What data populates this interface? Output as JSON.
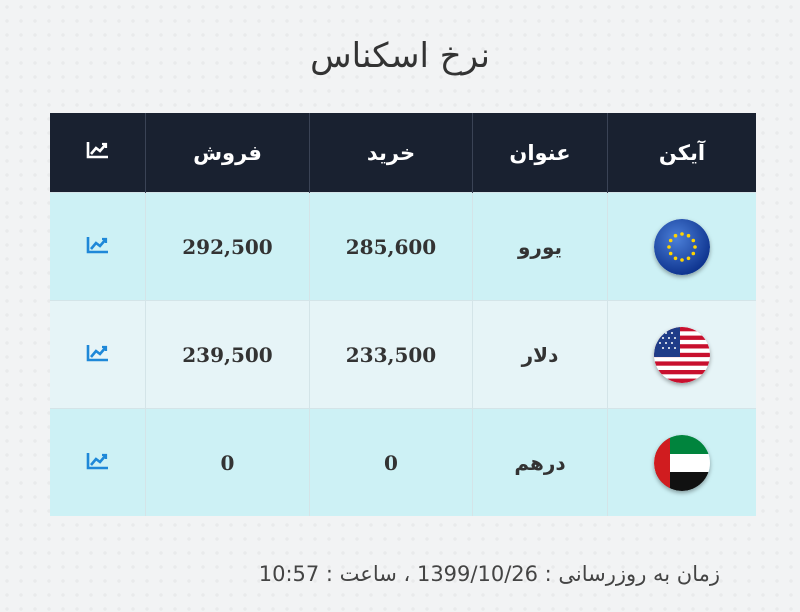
{
  "page": {
    "title": "نرخ اسکناس"
  },
  "table": {
    "headers": {
      "icon": "آیکن",
      "name": "عنوان",
      "buy": "خرید",
      "sell": "فروش",
      "chart": "chart-line-icon"
    },
    "rows": [
      {
        "flag": "eu-flag-icon",
        "name": "یورو",
        "buy": "285,600",
        "sell": "292,500",
        "chart": "chart-line-icon"
      },
      {
        "flag": "us-flag-icon",
        "name": "دلار",
        "buy": "233,500",
        "sell": "239,500",
        "chart": "chart-line-icon"
      },
      {
        "flag": "uae-flag-icon",
        "name": "درهم",
        "buy": "0",
        "sell": "0",
        "chart": "chart-line-icon"
      }
    ]
  },
  "footer": {
    "update_text": "زمان به روزرسانی : 1399/10/26 ، ساعت : 10:57"
  },
  "colors": {
    "header_bg": "#192130",
    "row_alt_1": "#cdf1f5",
    "row_alt_2": "#e6f4f7",
    "chart_icon": "#1e88d8"
  }
}
